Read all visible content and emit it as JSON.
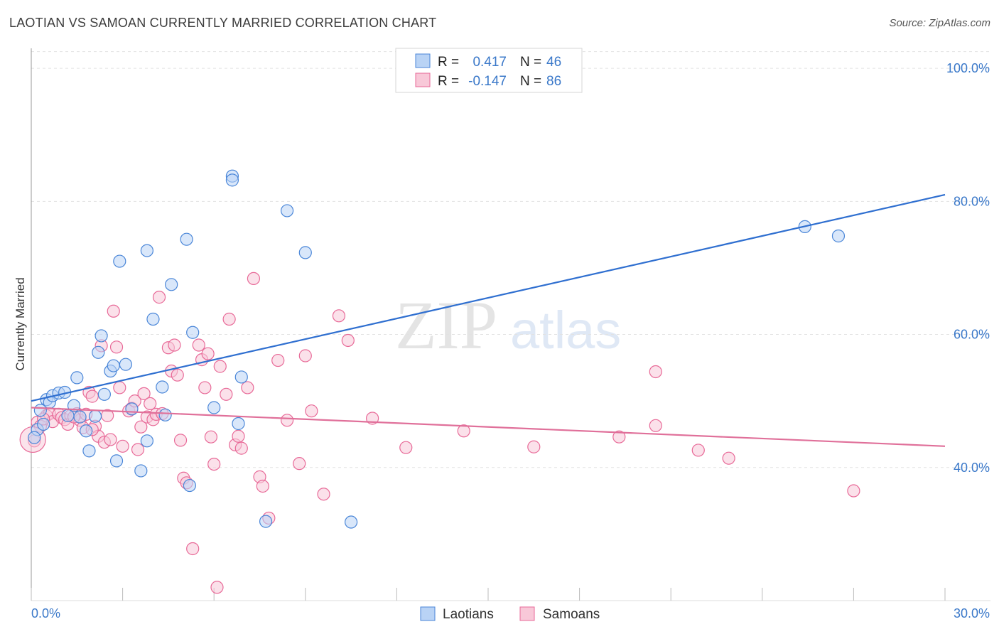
{
  "title": "LAOTIAN VS SAMOAN CURRENTLY MARRIED CORRELATION CHART",
  "source": "Source: ZipAtlas.com",
  "watermark": {
    "zip": "ZIP",
    "atlas": "atlas"
  },
  "colors": {
    "blue": "#4a86d8",
    "blue_fill": "#b9d3f5",
    "blue_line": "#2f6fd0",
    "pink": "#e86a98",
    "pink_fill": "#f8c8d8",
    "pink_line": "#e0709a",
    "axis_text": "#3a78c9",
    "grid": "#e2e2e2"
  },
  "legend": {
    "rows": [
      {
        "r_label": "R =",
        "r_value": "0.417",
        "n_label": "N =",
        "n_value": "46"
      },
      {
        "r_label": "R =",
        "r_value": "-0.147",
        "n_label": "N =",
        "n_value": "86"
      }
    ]
  },
  "bottom_legend": [
    "Laotians",
    "Samoans"
  ],
  "chart_data": {
    "type": "scatter",
    "ylabel": "Currently Married",
    "xlabel": "",
    "xlim": [
      0,
      30
    ],
    "ylim": [
      20,
      103
    ],
    "x_tick_labels": [
      "0.0%",
      "30.0%"
    ],
    "y_tick_labels": [
      "40.0%",
      "60.0%",
      "80.0%",
      "100.0%"
    ],
    "y_ticks": [
      40,
      60,
      80,
      100
    ],
    "series": [
      {
        "name": "Laotians",
        "color": "blue",
        "r": 0.417,
        "n": 46,
        "trend": {
          "x": [
            0,
            30
          ],
          "y": [
            50.0,
            81.0
          ]
        },
        "points": [
          [
            0.2,
            45.7
          ],
          [
            0.3,
            48.6
          ],
          [
            0.5,
            50.2
          ],
          [
            0.6,
            49.8
          ],
          [
            0.7,
            50.8
          ],
          [
            0.9,
            51.2
          ],
          [
            1.1,
            51.3
          ],
          [
            1.4,
            49.3
          ],
          [
            1.5,
            53.5
          ],
          [
            1.6,
            47.6
          ],
          [
            1.8,
            45.5
          ],
          [
            1.9,
            42.5
          ],
          [
            2.1,
            47.7
          ],
          [
            2.2,
            57.3
          ],
          [
            2.3,
            59.8
          ],
          [
            2.4,
            51.0
          ],
          [
            2.6,
            54.5
          ],
          [
            2.7,
            55.3
          ],
          [
            2.8,
            41.0
          ],
          [
            2.9,
            71.0
          ],
          [
            3.1,
            55.5
          ],
          [
            3.3,
            48.8
          ],
          [
            3.6,
            39.5
          ],
          [
            3.8,
            72.6
          ],
          [
            3.8,
            44.0
          ],
          [
            4.0,
            62.3
          ],
          [
            4.3,
            52.1
          ],
          [
            4.4,
            47.9
          ],
          [
            4.6,
            67.5
          ],
          [
            5.1,
            74.3
          ],
          [
            5.2,
            37.3
          ],
          [
            5.3,
            60.3
          ],
          [
            6.0,
            49.0
          ],
          [
            6.6,
            83.8
          ],
          [
            6.6,
            83.2
          ],
          [
            6.8,
            46.6
          ],
          [
            6.9,
            53.6
          ],
          [
            7.7,
            31.9
          ],
          [
            8.4,
            78.6
          ],
          [
            9.0,
            72.3
          ],
          [
            10.5,
            31.8
          ],
          [
            25.4,
            76.2
          ],
          [
            26.5,
            74.8
          ],
          [
            0.1,
            44.5
          ],
          [
            1.2,
            47.8
          ],
          [
            0.4,
            46.5
          ]
        ]
      },
      {
        "name": "Samoans",
        "color": "pink",
        "r": -0.147,
        "n": 86,
        "trend": {
          "x": [
            0,
            30
          ],
          "y": [
            49.0,
            43.2
          ]
        },
        "points": [
          [
            0.1,
            44.0
          ],
          [
            0.2,
            46.8
          ],
          [
            0.3,
            46.2
          ],
          [
            0.5,
            47.8
          ],
          [
            0.6,
            48.1
          ],
          [
            0.7,
            46.9
          ],
          [
            0.9,
            48.0
          ],
          [
            1.0,
            47.5
          ],
          [
            1.1,
            47.2
          ],
          [
            1.2,
            46.5
          ],
          [
            1.3,
            47.8
          ],
          [
            1.5,
            48.1
          ],
          [
            1.6,
            47.1
          ],
          [
            1.7,
            46.0
          ],
          [
            1.8,
            48.0
          ],
          [
            1.9,
            51.3
          ],
          [
            2.0,
            50.7
          ],
          [
            2.1,
            46.2
          ],
          [
            2.2,
            44.7
          ],
          [
            2.3,
            58.3
          ],
          [
            2.4,
            43.8
          ],
          [
            2.5,
            47.8
          ],
          [
            2.6,
            44.2
          ],
          [
            2.7,
            63.5
          ],
          [
            2.8,
            58.1
          ],
          [
            2.9,
            52.0
          ],
          [
            3.0,
            43.2
          ],
          [
            3.2,
            48.5
          ],
          [
            3.3,
            48.9
          ],
          [
            3.4,
            50.0
          ],
          [
            3.5,
            42.7
          ],
          [
            3.6,
            46.1
          ],
          [
            3.7,
            51.1
          ],
          [
            3.8,
            47.6
          ],
          [
            3.9,
            49.6
          ],
          [
            4.0,
            47.2
          ],
          [
            4.1,
            48.0
          ],
          [
            4.2,
            65.6
          ],
          [
            4.3,
            48.1
          ],
          [
            4.5,
            58.0
          ],
          [
            4.6,
            54.5
          ],
          [
            4.7,
            58.4
          ],
          [
            4.8,
            53.9
          ],
          [
            4.9,
            44.1
          ],
          [
            5.0,
            38.4
          ],
          [
            5.1,
            37.7
          ],
          [
            5.3,
            27.8
          ],
          [
            5.5,
            58.4
          ],
          [
            5.6,
            56.2
          ],
          [
            5.7,
            52.0
          ],
          [
            5.8,
            57.1
          ],
          [
            5.9,
            44.6
          ],
          [
            6.0,
            40.5
          ],
          [
            6.1,
            22.0
          ],
          [
            6.2,
            55.2
          ],
          [
            6.4,
            51.0
          ],
          [
            6.5,
            62.3
          ],
          [
            6.7,
            43.4
          ],
          [
            6.8,
            44.7
          ],
          [
            6.9,
            42.9
          ],
          [
            7.1,
            52.0
          ],
          [
            7.3,
            68.4
          ],
          [
            7.5,
            38.6
          ],
          [
            7.6,
            37.2
          ],
          [
            7.8,
            32.4
          ],
          [
            8.1,
            56.1
          ],
          [
            8.4,
            47.1
          ],
          [
            8.8,
            40.6
          ],
          [
            9.0,
            56.8
          ],
          [
            9.2,
            48.5
          ],
          [
            9.6,
            36.0
          ],
          [
            10.1,
            62.8
          ],
          [
            10.4,
            59.1
          ],
          [
            11.2,
            47.4
          ],
          [
            12.3,
            43.0
          ],
          [
            14.2,
            45.5
          ],
          [
            16.5,
            43.1
          ],
          [
            19.3,
            44.6
          ],
          [
            20.5,
            46.3
          ],
          [
            20.5,
            54.4
          ],
          [
            21.9,
            42.6
          ],
          [
            22.9,
            41.4
          ],
          [
            27.0,
            36.5
          ],
          [
            1.4,
            47.6
          ],
          [
            0.4,
            47.3
          ],
          [
            2.0,
            45.7
          ]
        ]
      }
    ]
  }
}
